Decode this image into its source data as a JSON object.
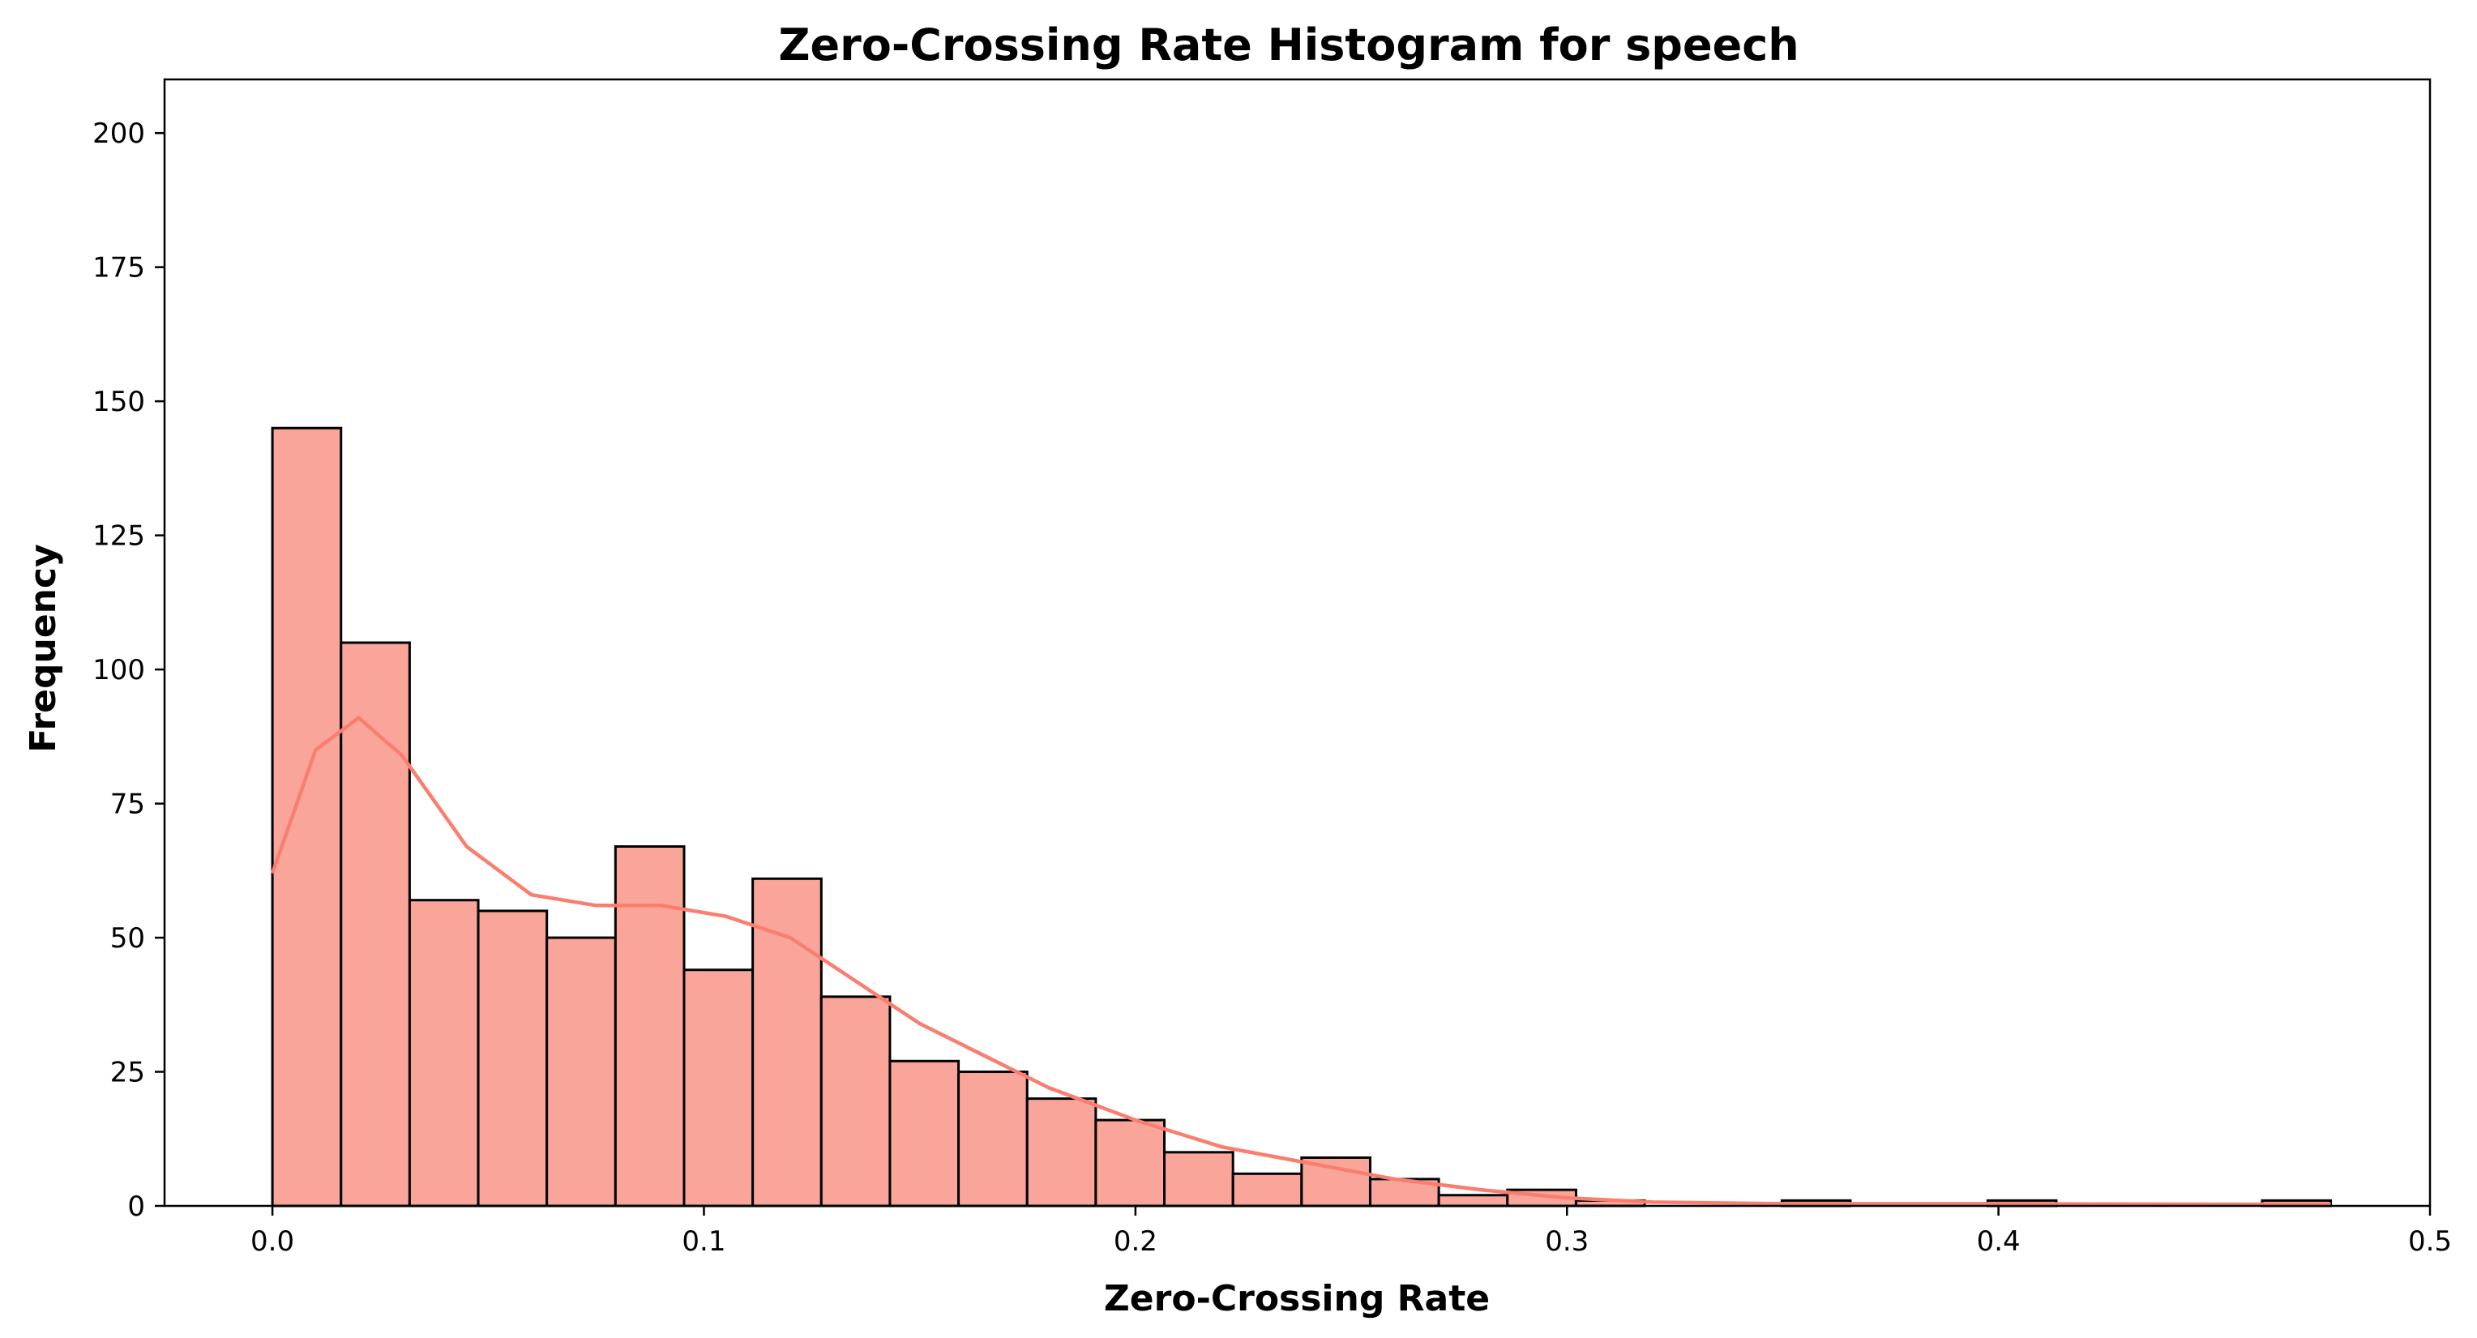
{
  "chart_data": {
    "type": "bar",
    "title": "Zero-Crossing Rate Histogram for speech",
    "xlabel": "Zero-Crossing Rate",
    "ylabel": "Frequency",
    "xlim": [
      -0.025,
      0.5
    ],
    "ylim": [
      0,
      210
    ],
    "xticks": [
      0.0,
      0.1,
      0.2,
      0.3,
      0.4,
      0.5
    ],
    "xtick_labels": [
      "0.0",
      "0.1",
      "0.2",
      "0.3",
      "0.4",
      "0.5"
    ],
    "yticks": [
      0,
      25,
      50,
      75,
      100,
      125,
      150,
      175,
      200
    ],
    "ytick_labels": [
      "0",
      "25",
      "50",
      "75",
      "100",
      "125",
      "150",
      "175",
      "200"
    ],
    "grid": false,
    "bin_edges": [
      0.0,
      0.0159,
      0.0318,
      0.0477,
      0.0636,
      0.0795,
      0.0954,
      0.1113,
      0.1272,
      0.1431,
      0.159,
      0.1749,
      0.1908,
      0.2067,
      0.2226,
      0.2385,
      0.2544,
      0.2703,
      0.2862,
      0.3021,
      0.318,
      0.3339,
      0.3498,
      0.3657,
      0.3816,
      0.3975,
      0.4134,
      0.4293,
      0.4452,
      0.4611,
      0.477
    ],
    "counts": [
      145,
      105,
      57,
      55,
      50,
      67,
      44,
      61,
      39,
      27,
      25,
      20,
      16,
      10,
      6,
      9,
      5,
      2,
      3,
      1,
      0,
      0,
      1,
      0,
      0,
      1,
      0,
      0,
      0,
      1
    ],
    "kde": {
      "x": [
        0.0,
        0.01,
        0.02,
        0.03,
        0.045,
        0.06,
        0.075,
        0.09,
        0.105,
        0.12,
        0.135,
        0.15,
        0.165,
        0.18,
        0.2,
        0.22,
        0.24,
        0.26,
        0.28,
        0.3,
        0.32,
        0.35,
        0.4,
        0.45,
        0.477
      ],
      "y": [
        62,
        85,
        91,
        84,
        67,
        58,
        56,
        56,
        54,
        50,
        42,
        34,
        28,
        22,
        16,
        11,
        8,
        5,
        3,
        1.5,
        0.7,
        0.4,
        0.4,
        0.3,
        0.3
      ]
    },
    "colors": {
      "bar_fill": "#f9a59a",
      "bar_edge": "#000000",
      "kde_line": "#fa7e6f"
    }
  }
}
